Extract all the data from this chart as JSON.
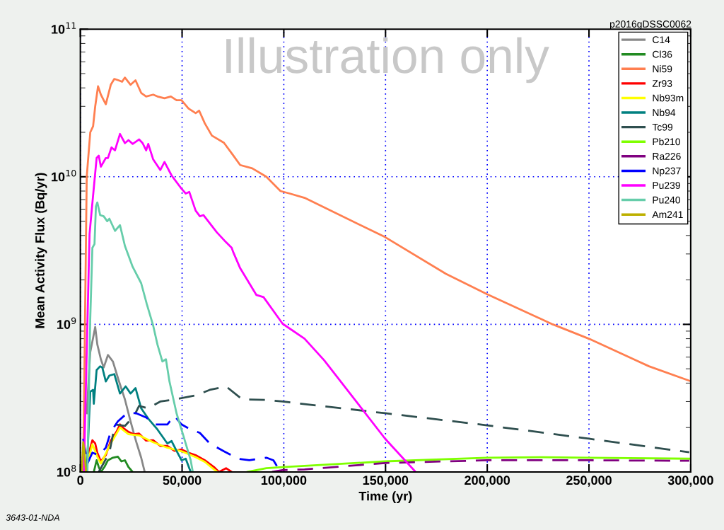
{
  "chart_data": {
    "type": "line",
    "xlabel": "Time (yr)",
    "ylabel": "Mean Activity Flux (Bq/yr)",
    "log": "y",
    "grid": true,
    "legend": "top right",
    "marker": "none",
    "xlim": [
      0,
      300000
    ],
    "xticks": [
      {
        "value": 0,
        "label": "0"
      },
      {
        "value": 50000,
        "label": "50,000"
      },
      {
        "value": 100000,
        "label": "100,000"
      },
      {
        "value": 150000,
        "label": "150,000"
      },
      {
        "value": 200000,
        "label": "200,000"
      },
      {
        "value": 250000,
        "label": "250,000"
      },
      {
        "value": 300000,
        "label": "300,000"
      }
    ],
    "ylim": [
      100000000.0,
      100000000000.0
    ],
    "yticks": [
      {
        "value": 100000000.0,
        "label": "10$^{8}$"
      },
      {
        "value": 1000000000.0,
        "label": "10$^{9}$"
      },
      {
        "value": 10000000000.0,
        "label": "10$^{10}$"
      },
      {
        "value": 100000000000.0,
        "label": "10$^{11}$"
      }
    ],
    "annotations": [
      "Illustration only",
      "p2016gDSSC0062",
      "3643-01-NDA"
    ],
    "series": [
      {
        "name": "C14",
        "color": "#888888",
        "line_style": "solid",
        "x": [
          3130,
          4870,
          6260,
          7300,
          8340,
          10080,
          11470,
          13560,
          15990,
          18770,
          21900,
          24680,
          27460,
          29890,
          31630
        ],
        "values": [
          250000000.0,
          650000000.0,
          810000000.0,
          960000000.0,
          730000000.0,
          580000000.0,
          510000000.0,
          620000000.0,
          560000000.0,
          420000000.0,
          310000000.0,
          220000000.0,
          160000000.0,
          125000000.0,
          100000000.0
        ]
      },
      {
        "name": "Cl36",
        "color": "#228b22",
        "line_style": "solid",
        "x": [
          6600,
          7990,
          9040,
          10080,
          11820,
          13560,
          15990,
          18420,
          20160,
          21900,
          23640,
          25720
        ],
        "values": [
          100000000.0,
          120000000.0,
          108000000.0,
          100000000.0,
          108000000.0,
          120000000.0,
          125000000.0,
          127000000.0,
          118000000.0,
          120000000.0,
          108000000.0,
          100000000.0
        ]
      },
      {
        "name": "Ni59",
        "color": "#ff7f50",
        "line_style": "solid",
        "x": [
          1390,
          3130,
          4870,
          6260,
          7300,
          8690,
          10080,
          12510,
          14950,
          16690,
          18770,
          20510,
          21900,
          24680,
          27110,
          29890,
          32330,
          35800,
          37890,
          41360,
          44490,
          47270,
          49710,
          53180,
          56660,
          58400,
          61180,
          64650,
          70560,
          75080,
          78560,
          84470,
          91420,
          98370,
          102900,
          110200,
          149800,
          179700,
          199900,
          232200,
          249900,
          279500,
          299300
        ],
        "values": [
          100000000.0,
          10000000000.0,
          20000000000.0,
          22000000000.0,
          30000000000.0,
          41000000000.0,
          36000000000.0,
          31000000000.0,
          42000000000.0,
          46000000000.0,
          45000000000.0,
          44000000000.0,
          47000000000.0,
          42000000000.0,
          45000000000.0,
          37000000000.0,
          35000000000.0,
          36000000000.0,
          35000000000.0,
          34000000000.0,
          35000000000.0,
          33000000000.0,
          33000000000.0,
          29000000000.0,
          27000000000.0,
          28000000000.0,
          23000000000.0,
          19000000000.0,
          17000000000.0,
          14000000000.0,
          12000000000.0,
          11400000000.0,
          10000000000.0,
          8000000000.0,
          7700000000.0,
          7200000000.0,
          3900000000.0,
          2200000000.0,
          1600000000.0,
          1000000000.0,
          800000000.0,
          520000000.0,
          415000000.0
        ]
      },
      {
        "name": "Zr93",
        "color": "#ff0000",
        "line_style": "solid",
        "x": [
          4170,
          5910,
          7300,
          8340,
          10080,
          12510,
          14950,
          17730,
          19470,
          21200,
          23640,
          26420,
          28850,
          32330,
          35800,
          39280,
          42760,
          46230,
          49710,
          53180,
          56660,
          61180,
          65690,
          68130,
          71610,
          74390
        ],
        "values": [
          135000000.0,
          164000000.0,
          156000000.0,
          135000000.0,
          118000000.0,
          130000000.0,
          163000000.0,
          187000000.0,
          210000000.0,
          198000000.0,
          187000000.0,
          180000000.0,
          182000000.0,
          163000000.0,
          164000000.0,
          150000000.0,
          150000000.0,
          139000000.0,
          142000000.0,
          135000000.0,
          130000000.0,
          120000000.0,
          108000000.0,
          100000000.0,
          106000000.0,
          100000000.0
        ]
      },
      {
        "name": "Nb93m",
        "color": "#ffff00",
        "line_style": "solid",
        "x": [
          2430,
          5910,
          8340,
          10080,
          14950,
          19470,
          23640,
          28850,
          35800,
          42760,
          49710,
          56660,
          61180,
          65690,
          67430
        ],
        "values": [
          100000000.0,
          154000000.0,
          127000000.0,
          114000000.0,
          156000000.0,
          200000000.0,
          180000000.0,
          177000000.0,
          159000000.0,
          146000000.0,
          138000000.0,
          126000000.0,
          117000000.0,
          104000000.0,
          100000000.0
        ]
      },
      {
        "name": "Nb94",
        "color": "#008080",
        "line_style": "solid",
        "x": [
          3130,
          4870,
          6260,
          6600,
          7990,
          9730,
          10780,
          12510,
          14250,
          16690,
          19470,
          22250,
          24680,
          27110,
          29890,
          33370,
          37890,
          42760,
          44840,
          47270,
          49710,
          51790,
          54230
        ],
        "values": [
          100000000.0,
          350000000.0,
          360000000.0,
          290000000.0,
          490000000.0,
          520000000.0,
          510000000.0,
          410000000.0,
          450000000.0,
          460000000.0,
          340000000.0,
          380000000.0,
          340000000.0,
          370000000.0,
          270000000.0,
          230000000.0,
          194000000.0,
          156000000.0,
          162000000.0,
          139000000.0,
          120000000.0,
          123000000.0,
          100000000.0
        ]
      },
      {
        "name": "Tc99",
        "color": "#2f4f4f",
        "line_style": "dashed",
        "x": [
          9040,
          14250,
          17030,
          21900,
          26420,
          28850,
          33370,
          39280,
          46230,
          56660,
          63610,
          71610,
          79600,
          91420,
          99410,
          149800,
          199900,
          249900,
          299300
        ],
        "values": [
          100000000.0,
          135000000.0,
          210000000.0,
          205000000.0,
          240000000.0,
          280000000.0,
          270000000.0,
          300000000.0,
          310000000.0,
          330000000.0,
          360000000.0,
          380000000.0,
          310000000.0,
          308000000.0,
          300000000.0,
          250000000.0,
          207000000.0,
          168000000.0,
          136000000.0
        ]
      },
      {
        "name": "Pb210",
        "color": "#7fff00",
        "line_style": "solid",
        "x": [
          82040,
          91420,
          99410,
          110200,
          149800,
          199900,
          227000,
          249900,
          299300
        ],
        "values": [
          100000000.0,
          106000000.0,
          108000000.0,
          110000000.0,
          118000000.0,
          125000000.0,
          126000000.0,
          125000000.0,
          123000000.0
        ]
      },
      {
        "name": "Ra226",
        "color": "#800080",
        "line_style": "dashed",
        "x": [
          94200,
          99410,
          110200,
          149800,
          199900,
          249900,
          299300
        ],
        "values": [
          100000000.0,
          103000000.0,
          104000000.0,
          115000000.0,
          120000000.0,
          120000000.0,
          119000000.0
        ]
      },
      {
        "name": "Np237",
        "color": "#0000ff",
        "line_style": "dashed",
        "x": [
          1390,
          3480,
          5910,
          9040,
          12510,
          14950,
          18420,
          22940,
          27460,
          32330,
          36850,
          42760,
          46230,
          49710,
          54230,
          58740,
          63610,
          70560,
          77510,
          83080,
          91420,
          94900,
          98370
        ],
        "values": [
          168000000.0,
          114000000.0,
          135000000.0,
          130000000.0,
          146000000.0,
          187000000.0,
          220000000.0,
          250000000.0,
          250000000.0,
          234000000.0,
          210000000.0,
          210000000.0,
          240000000.0,
          210000000.0,
          194000000.0,
          184000000.0,
          156000000.0,
          138000000.0,
          123000000.0,
          120000000.0,
          125000000.0,
          120000000.0,
          100000000.0
        ]
      },
      {
        "name": "Pu239",
        "color": "#ff00ff",
        "line_style": "solid",
        "x": [
          1740,
          2780,
          4520,
          5560,
          7990,
          9040,
          10080,
          12510,
          13560,
          15290,
          17030,
          19470,
          21900,
          23640,
          25720,
          28850,
          30590,
          32330,
          33370,
          35800,
          39280,
          41360,
          44840,
          49710,
          51790,
          53530,
          56660,
          58740,
          60480,
          67090,
          71610,
          74390,
          75080,
          78560,
          86550,
          90030,
          99410,
          110200,
          119900,
          149800,
          164800
        ],
        "values": [
          100000000.0,
          410000000.0,
          4100000000.0,
          5900000000.0,
          13400000000.0,
          13900000000.0,
          11700000000.0,
          13400000000.0,
          13400000000.0,
          15800000000.0,
          15100000000.0,
          19500000000.0,
          16900000000.0,
          17700000000.0,
          16700000000.0,
          17900000000.0,
          16900000000.0,
          15100000000.0,
          16700000000.0,
          13100000000.0,
          11100000000.0,
          12600000000.0,
          10200000000.0,
          8300000000.0,
          7700000000.0,
          7900000000.0,
          5900000000.0,
          5400000000.0,
          5500000000.0,
          4200000000.0,
          3600000000.0,
          3300000000.0,
          3100000000.0,
          2400000000.0,
          1580000000.0,
          1530000000.0,
          1010000000.0,
          800000000.0,
          570000000.0,
          168000000.0,
          100000000.0
        ]
      },
      {
        "name": "Pu240",
        "color": "#66cdaa",
        "line_style": "solid",
        "x": [
          3480,
          4870,
          5910,
          6950,
          7650,
          8340,
          9730,
          11470,
          13210,
          14250,
          17030,
          19470,
          21900,
          25720,
          29890,
          32670,
          35800,
          37890,
          40320,
          42060,
          43800,
          47270,
          50750,
          54230,
          55270
        ],
        "values": [
          100000000.0,
          1100000000.0,
          3300000000.0,
          3500000000.0,
          6300000000.0,
          6700000000.0,
          5500000000.0,
          5400000000.0,
          5000000000.0,
          5200000000.0,
          4300000000.0,
          4700000000.0,
          3400000000.0,
          2450000000.0,
          1900000000.0,
          1370000000.0,
          980000000.0,
          730000000.0,
          560000000.0,
          580000000.0,
          410000000.0,
          250000000.0,
          174000000.0,
          120000000.0,
          100000000.0
        ]
      },
      {
        "name": "Am241",
        "color": "#bdb000",
        "line_style": "solid",
        "x": [
          700,
          1390,
          2090,
          2780
        ],
        "values": [
          100000000.0,
          159000000.0,
          135000000.0,
          100000000.0
        ]
      }
    ]
  }
}
